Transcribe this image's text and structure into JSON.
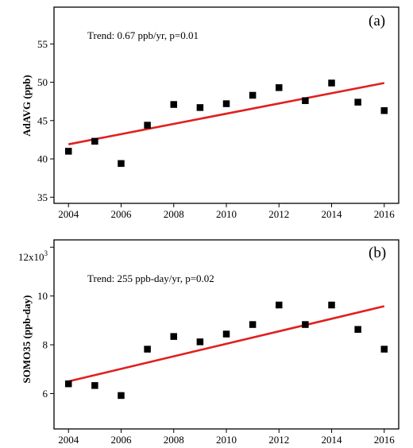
{
  "chart_data": [
    {
      "type": "scatter",
      "panel_label": "(a)",
      "ylabel": "AdAVG (ppb)",
      "xlabel": "",
      "xlim": [
        2003.45,
        2016.55
      ],
      "ylim": [
        34.2,
        59.8
      ],
      "x_ticks": [
        2004,
        2006,
        2008,
        2010,
        2012,
        2014,
        2016
      ],
      "y_ticks": [
        35,
        40,
        45,
        50,
        55
      ],
      "x": [
        2004,
        2005,
        2006,
        2007,
        2008,
        2009,
        2010,
        2011,
        2012,
        2013,
        2014,
        2015,
        2016
      ],
      "values": [
        41.0,
        42.3,
        39.4,
        44.4,
        47.1,
        46.7,
        47.2,
        48.3,
        49.3,
        47.6,
        49.9,
        47.4,
        46.3
      ],
      "trend_line": {
        "x": [
          2004,
          2016
        ],
        "y": [
          41.9,
          49.9
        ],
        "color": "#e0201e"
      },
      "annotation": "Trend: 0.67 ppb/yr, p=0.01",
      "marker_color": "#000000",
      "grid": false
    },
    {
      "type": "scatter",
      "panel_label": "(b)",
      "ylabel": "SOMO35 (ppb-day)",
      "xlabel": "",
      "xlim": [
        2003.45,
        2016.55
      ],
      "ylim": [
        4.55,
        12.3
      ],
      "x_ticks": [
        2004,
        2006,
        2008,
        2010,
        2012,
        2014,
        2016
      ],
      "y_ticks": [
        6,
        8,
        10,
        12
      ],
      "y_tick_labels": [
        "6",
        "8",
        "10",
        ""
      ],
      "y_multiplier": {
        "base": "12x10",
        "exponent": "3"
      },
      "x": [
        2004,
        2005,
        2006,
        2007,
        2008,
        2009,
        2010,
        2011,
        2012,
        2013,
        2014,
        2015,
        2016
      ],
      "values": [
        6.4,
        6.33,
        5.92,
        7.82,
        8.34,
        8.12,
        8.44,
        8.83,
        9.63,
        8.83,
        9.63,
        8.63,
        7.82
      ],
      "trend_line": {
        "x": [
          2004,
          2016
        ],
        "y": [
          6.5,
          9.58
        ],
        "color": "#e0201e"
      },
      "annotation": "Trend: 255 ppb-day/yr, p=0.02",
      "marker_color": "#000000",
      "grid": false
    }
  ]
}
